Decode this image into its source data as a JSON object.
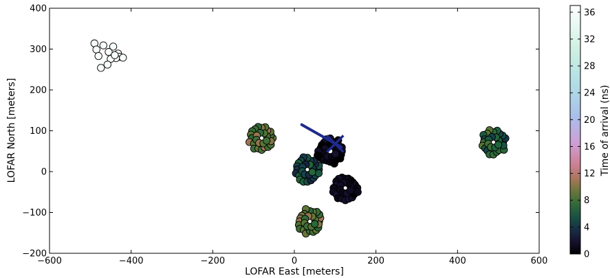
{
  "chart_data": {
    "type": "scatter",
    "xlabel": "LOFAR East [meters]",
    "ylabel": "LOFAR North [meters]",
    "xlim": [
      -600,
      600
    ],
    "ylim": [
      -200,
      400
    ],
    "xticks": [
      -600,
      -400,
      -200,
      0,
      200,
      400,
      600
    ],
    "yticks": [
      -200,
      -100,
      0,
      100,
      200,
      300,
      400
    ],
    "grid": false,
    "colorbar": {
      "label": "Time of arrival (ns)",
      "range": [
        0,
        37
      ],
      "ticks": [
        0,
        4,
        8,
        12,
        16,
        20,
        24,
        28,
        32,
        36
      ],
      "colormap": "cubehelix"
    },
    "clusters": [
      {
        "cx": -460,
        "cy": 288,
        "t": 36,
        "points": [
          [
            -490,
            314
          ],
          [
            -468,
            309
          ],
          [
            -485,
            299
          ],
          [
            -444,
            306
          ],
          [
            -455,
            293
          ],
          [
            -480,
            283
          ],
          [
            -432,
            289
          ],
          [
            -428,
            281
          ],
          [
            -437,
            278
          ],
          [
            -450,
            276
          ],
          [
            -458,
            262
          ],
          [
            -474,
            254
          ],
          [
            -420,
            279
          ],
          [
            -440,
            285
          ]
        ]
      },
      {
        "cx": -80,
        "cy": 82,
        "t": [
          7,
          11
        ],
        "r": 30
      },
      {
        "cx": 32,
        "cy": 5,
        "t": [
          3,
          7
        ],
        "r": 30
      },
      {
        "cx": 88,
        "cy": 50,
        "t": [
          0,
          2
        ],
        "r": 32
      },
      {
        "cx": 125,
        "cy": -40,
        "t": [
          0,
          2
        ],
        "r": 30
      },
      {
        "cx": 38,
        "cy": -122,
        "t": [
          7,
          11
        ],
        "r": 30
      },
      {
        "cx": 488,
        "cy": 72,
        "t": [
          4,
          9
        ],
        "r": 30
      }
    ],
    "shower_axis": {
      "x1": 18,
      "y1": 115,
      "x2": 115,
      "y2": 60,
      "cross": [
        100,
        68
      ],
      "color": "#1f2a8c"
    }
  }
}
